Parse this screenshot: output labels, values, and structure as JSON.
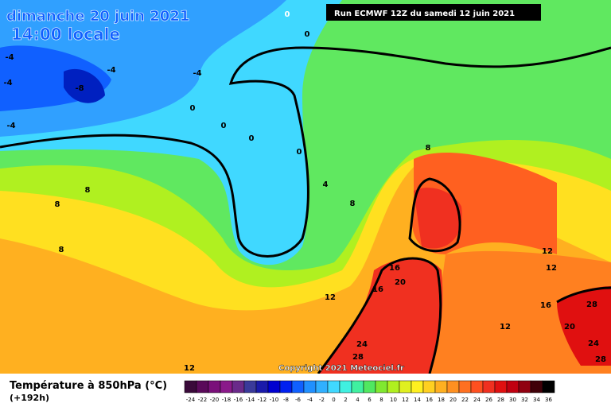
{
  "header": {
    "date": "dimanche 20 juin 2021",
    "time": "14:00 locale",
    "run": "Run ECMWF 12Z du samedi 12 juin 2021"
  },
  "map": {
    "contour_labels": [
      0,
      0,
      -4,
      -4,
      -4,
      -8,
      -4,
      -4,
      0,
      0,
      0,
      0,
      8,
      8,
      8,
      4,
      8,
      8,
      12,
      12,
      16,
      20,
      16,
      12,
      16,
      28,
      20,
      12,
      24,
      24,
      28,
      28,
      12
    ],
    "copyright": "Copyright 2021 Meteociel.fr"
  },
  "legend": {
    "title": "Température à 850hPa (°C)",
    "subtitle": "(+192h)",
    "scale": [
      -24,
      -22,
      -20,
      -18,
      -16,
      -14,
      -12,
      -10,
      -8,
      -6,
      -4,
      -2,
      0,
      2,
      4,
      6,
      8,
      10,
      12,
      14,
      16,
      18,
      20,
      22,
      24,
      26,
      28,
      30,
      32,
      34,
      36
    ],
    "colors": [
      "#3a0a3a",
      "#5a0a5a",
      "#7a107a",
      "#8a1a8a",
      "#6a2a8a",
      "#3a3a9a",
      "#1a1aaa",
      "#0000d0",
      "#0020f0",
      "#1060ff",
      "#2090ff",
      "#30b0ff",
      "#40d8ff",
      "#40f0e0",
      "#40f0a0",
      "#50e860",
      "#80e830",
      "#b0f020",
      "#e0f020",
      "#fff020",
      "#ffd020",
      "#ffb020",
      "#ff9020",
      "#ff7020",
      "#ff5020",
      "#f03020",
      "#e01010",
      "#c00010",
      "#900010",
      "#400008",
      "#000000"
    ]
  }
}
